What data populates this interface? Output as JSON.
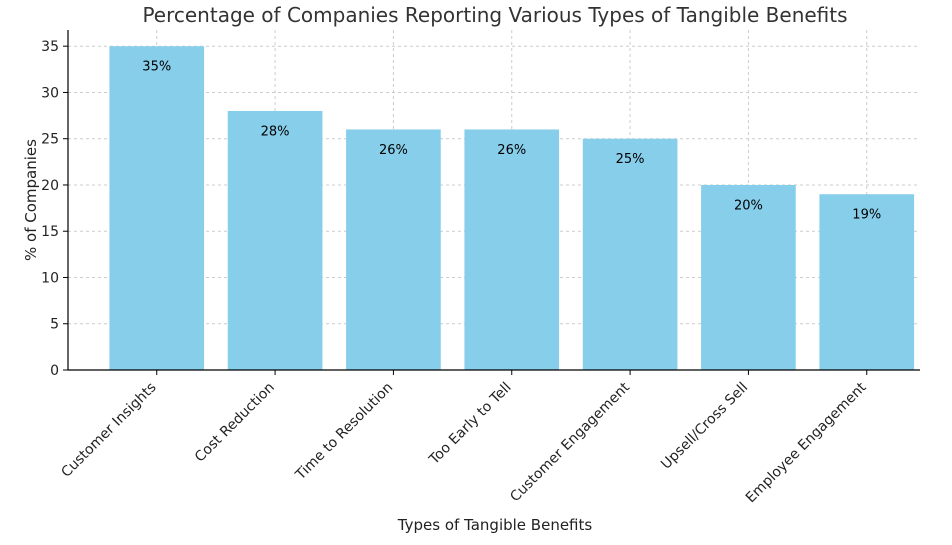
{
  "chart_data": {
    "type": "bar",
    "title": "Percentage of Companies Reporting Various Types of Tangible Benefits",
    "xlabel": "Types of Tangible Benefits",
    "ylabel": "% of Companies",
    "categories": [
      "Customer Insights",
      "Cost Reduction",
      "Time to Resolution",
      "Too Early to Tell",
      "Customer Engagement",
      "Upsell/Cross Sell",
      "Employee Engagement"
    ],
    "values": [
      35,
      28,
      26,
      26,
      25,
      20,
      19
    ],
    "data_labels": [
      "35%",
      "28%",
      "26%",
      "26%",
      "25%",
      "20%",
      "19%"
    ],
    "ylim": [
      0,
      36.75
    ],
    "yticks": [
      0,
      5,
      10,
      15,
      20,
      25,
      30,
      35
    ],
    "grid": true,
    "bar_color": "#87CEEB"
  }
}
